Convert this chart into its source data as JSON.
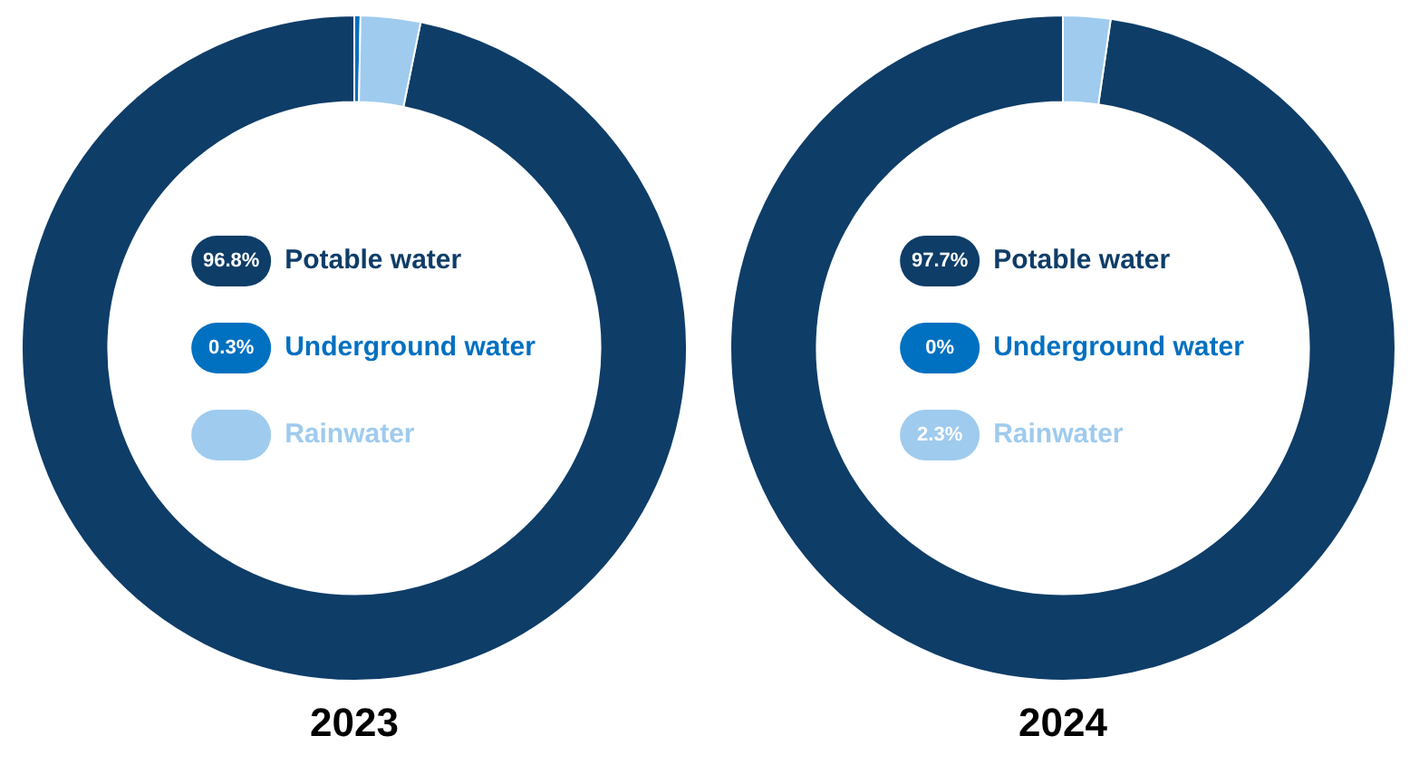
{
  "chart_data": [
    {
      "type": "donut",
      "title": "2023",
      "categories": [
        "Potable water",
        "Underground water",
        "Rainwater"
      ],
      "values": [
        96.8,
        0.3,
        2.9
      ],
      "value_labels": [
        "96.8%",
        "0.3%",
        null
      ],
      "colors": [
        "#0e3d68",
        "#0070c0",
        "#9fcbee"
      ],
      "legend": "center"
    },
    {
      "type": "donut",
      "title": "2024",
      "categories": [
        "Potable water",
        "Underground water",
        "Rainwater"
      ],
      "values": [
        97.7,
        0,
        2.3
      ],
      "value_labels": [
        "97.7%",
        "0%",
        "2.3%"
      ],
      "colors": [
        "#0e3d68",
        "#0070c0",
        "#9fcbee"
      ],
      "legend": "center"
    }
  ]
}
